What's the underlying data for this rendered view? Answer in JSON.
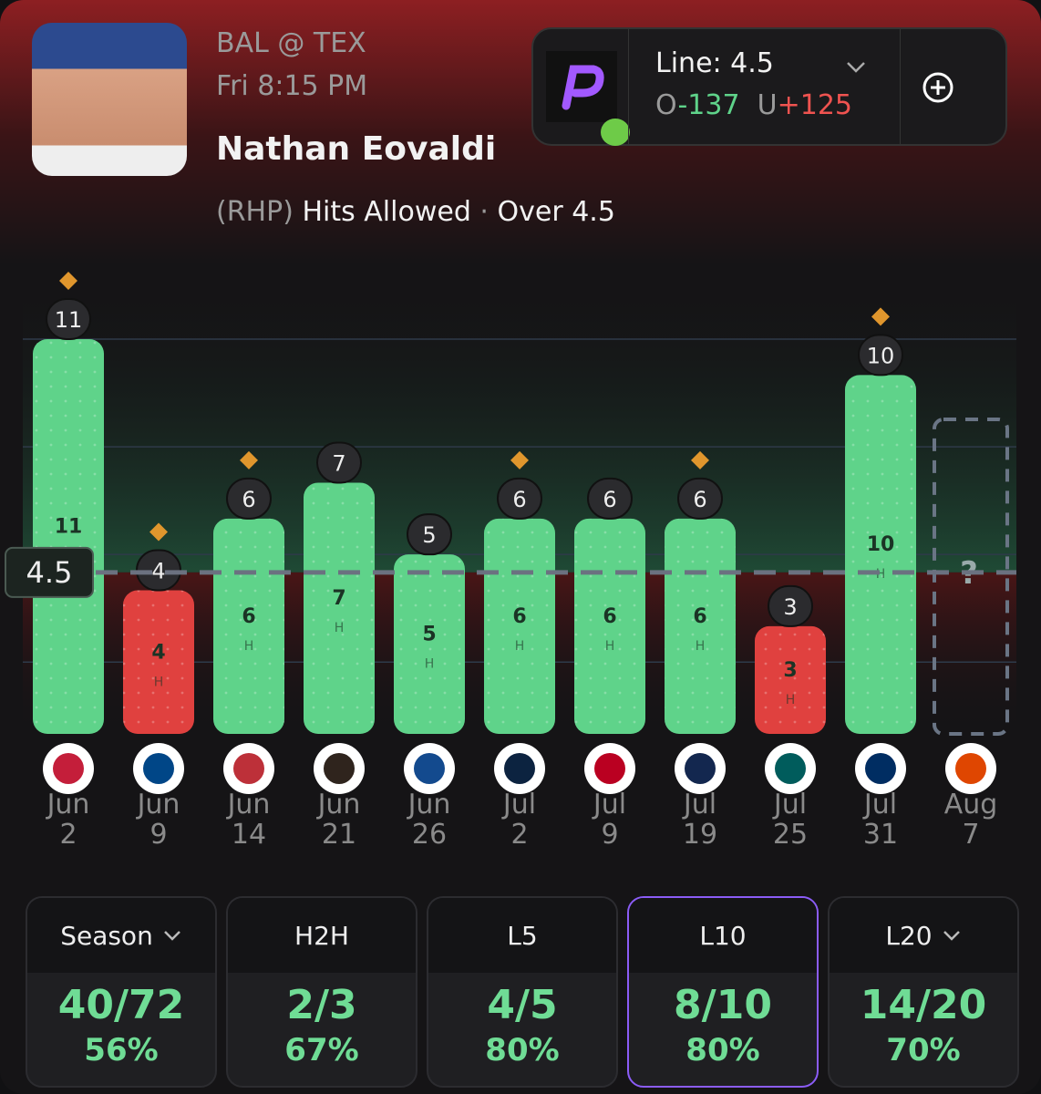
{
  "header": {
    "matchup": "BAL @ TEX",
    "time": "Fri 8:15 PM",
    "player": "Nathan Eovaldi",
    "position": "(RHP)",
    "stat": "Hits Allowed",
    "separator": "·",
    "pick": "Over 4.5"
  },
  "book": {
    "line": "Line: 4.5",
    "over_label": "O",
    "over_odds": "-137",
    "under_label": "U",
    "under_odds": "+125"
  },
  "chart_data": {
    "type": "bar",
    "categories": [
      "Jun 2",
      "Jun 9",
      "Jun 14",
      "Jun 21",
      "Jun 26",
      "Jul 2",
      "Jul 9",
      "Jul 19",
      "Jul 25",
      "Jul 31",
      "Aug 7"
    ],
    "values": [
      11,
      4,
      6,
      7,
      5,
      6,
      6,
      6,
      3,
      10,
      null
    ],
    "unit": "H",
    "pending_label": "?",
    "line": 4.5,
    "flags": [
      true,
      true,
      true,
      false,
      false,
      true,
      false,
      true,
      false,
      true,
      false
    ],
    "logo_colors": [
      "#c41e3a",
      "#004687",
      "#bd3039",
      "#2f241d",
      "#134a8e",
      "#0c2340",
      "#ba0021",
      "#13274f",
      "#005c5c",
      "#002d62",
      "#df4601"
    ],
    "over_color": "#5fd38a",
    "under_color": "#e0413f",
    "ylim": [
      0,
      11
    ],
    "grid_values": [
      2,
      5,
      8,
      11
    ]
  },
  "stats": {
    "selected": 3,
    "cards": [
      {
        "label": "Season",
        "dropdown": true,
        "record": "40/72",
        "pct": "56%"
      },
      {
        "label": "H2H",
        "dropdown": false,
        "record": "2/3",
        "pct": "67%"
      },
      {
        "label": "L5",
        "dropdown": false,
        "record": "4/5",
        "pct": "80%"
      },
      {
        "label": "L10",
        "dropdown": false,
        "record": "8/10",
        "pct": "80%"
      },
      {
        "label": "L20",
        "dropdown": true,
        "record": "14/20",
        "pct": "70%"
      }
    ]
  }
}
